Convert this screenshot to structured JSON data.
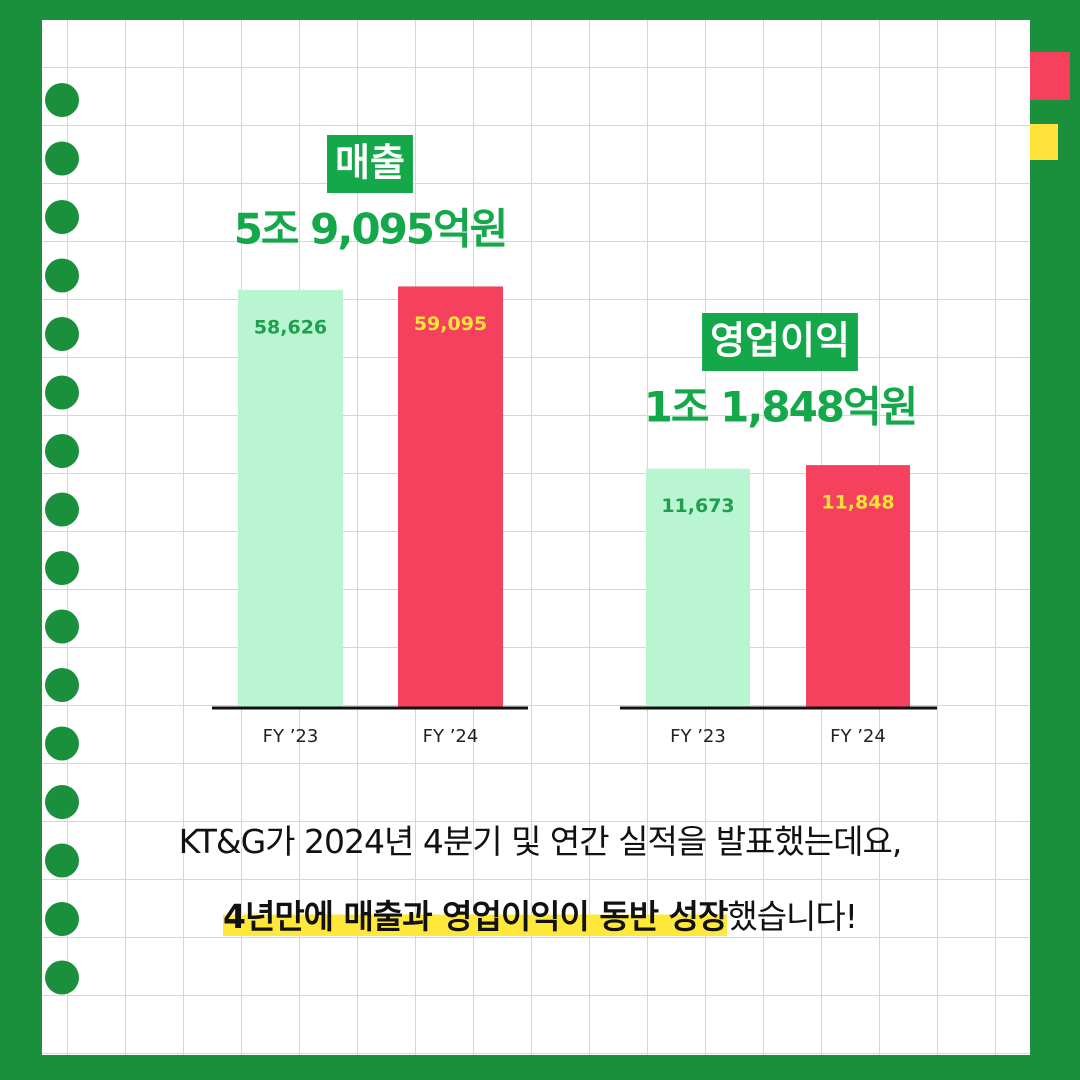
{
  "chart_data": [
    {
      "type": "bar",
      "title": "매출",
      "subtitle": "5조 9,095억원",
      "categories": [
        "FY ’23",
        "FY ’24"
      ],
      "values": [
        58626,
        59095
      ],
      "value_labels": [
        "58,626",
        "59,095"
      ],
      "colors": [
        "#b8f5d0",
        "#f5405e"
      ],
      "label_colors": [
        "#1f9e4f",
        "#ffe23a"
      ],
      "ylim": [
        0,
        60000
      ]
    },
    {
      "type": "bar",
      "title": "영업이익",
      "subtitle": "1조 1,848억원",
      "categories": [
        "FY ’23",
        "FY ’24"
      ],
      "values": [
        11673,
        11848
      ],
      "value_labels": [
        "11,673",
        "11,848"
      ],
      "colors": [
        "#b8f5d0",
        "#f5405e"
      ],
      "label_colors": [
        "#1f9e4f",
        "#ffe23a"
      ],
      "ylim": [
        0,
        12000
      ]
    }
  ],
  "caption": {
    "line1": "KT&G가 2024년 4분기 및 연간 실적을 발표했는데요,",
    "highlight": "4년만에 매출과 영업이익이 동반 성장",
    "rest": "했습니다!"
  }
}
